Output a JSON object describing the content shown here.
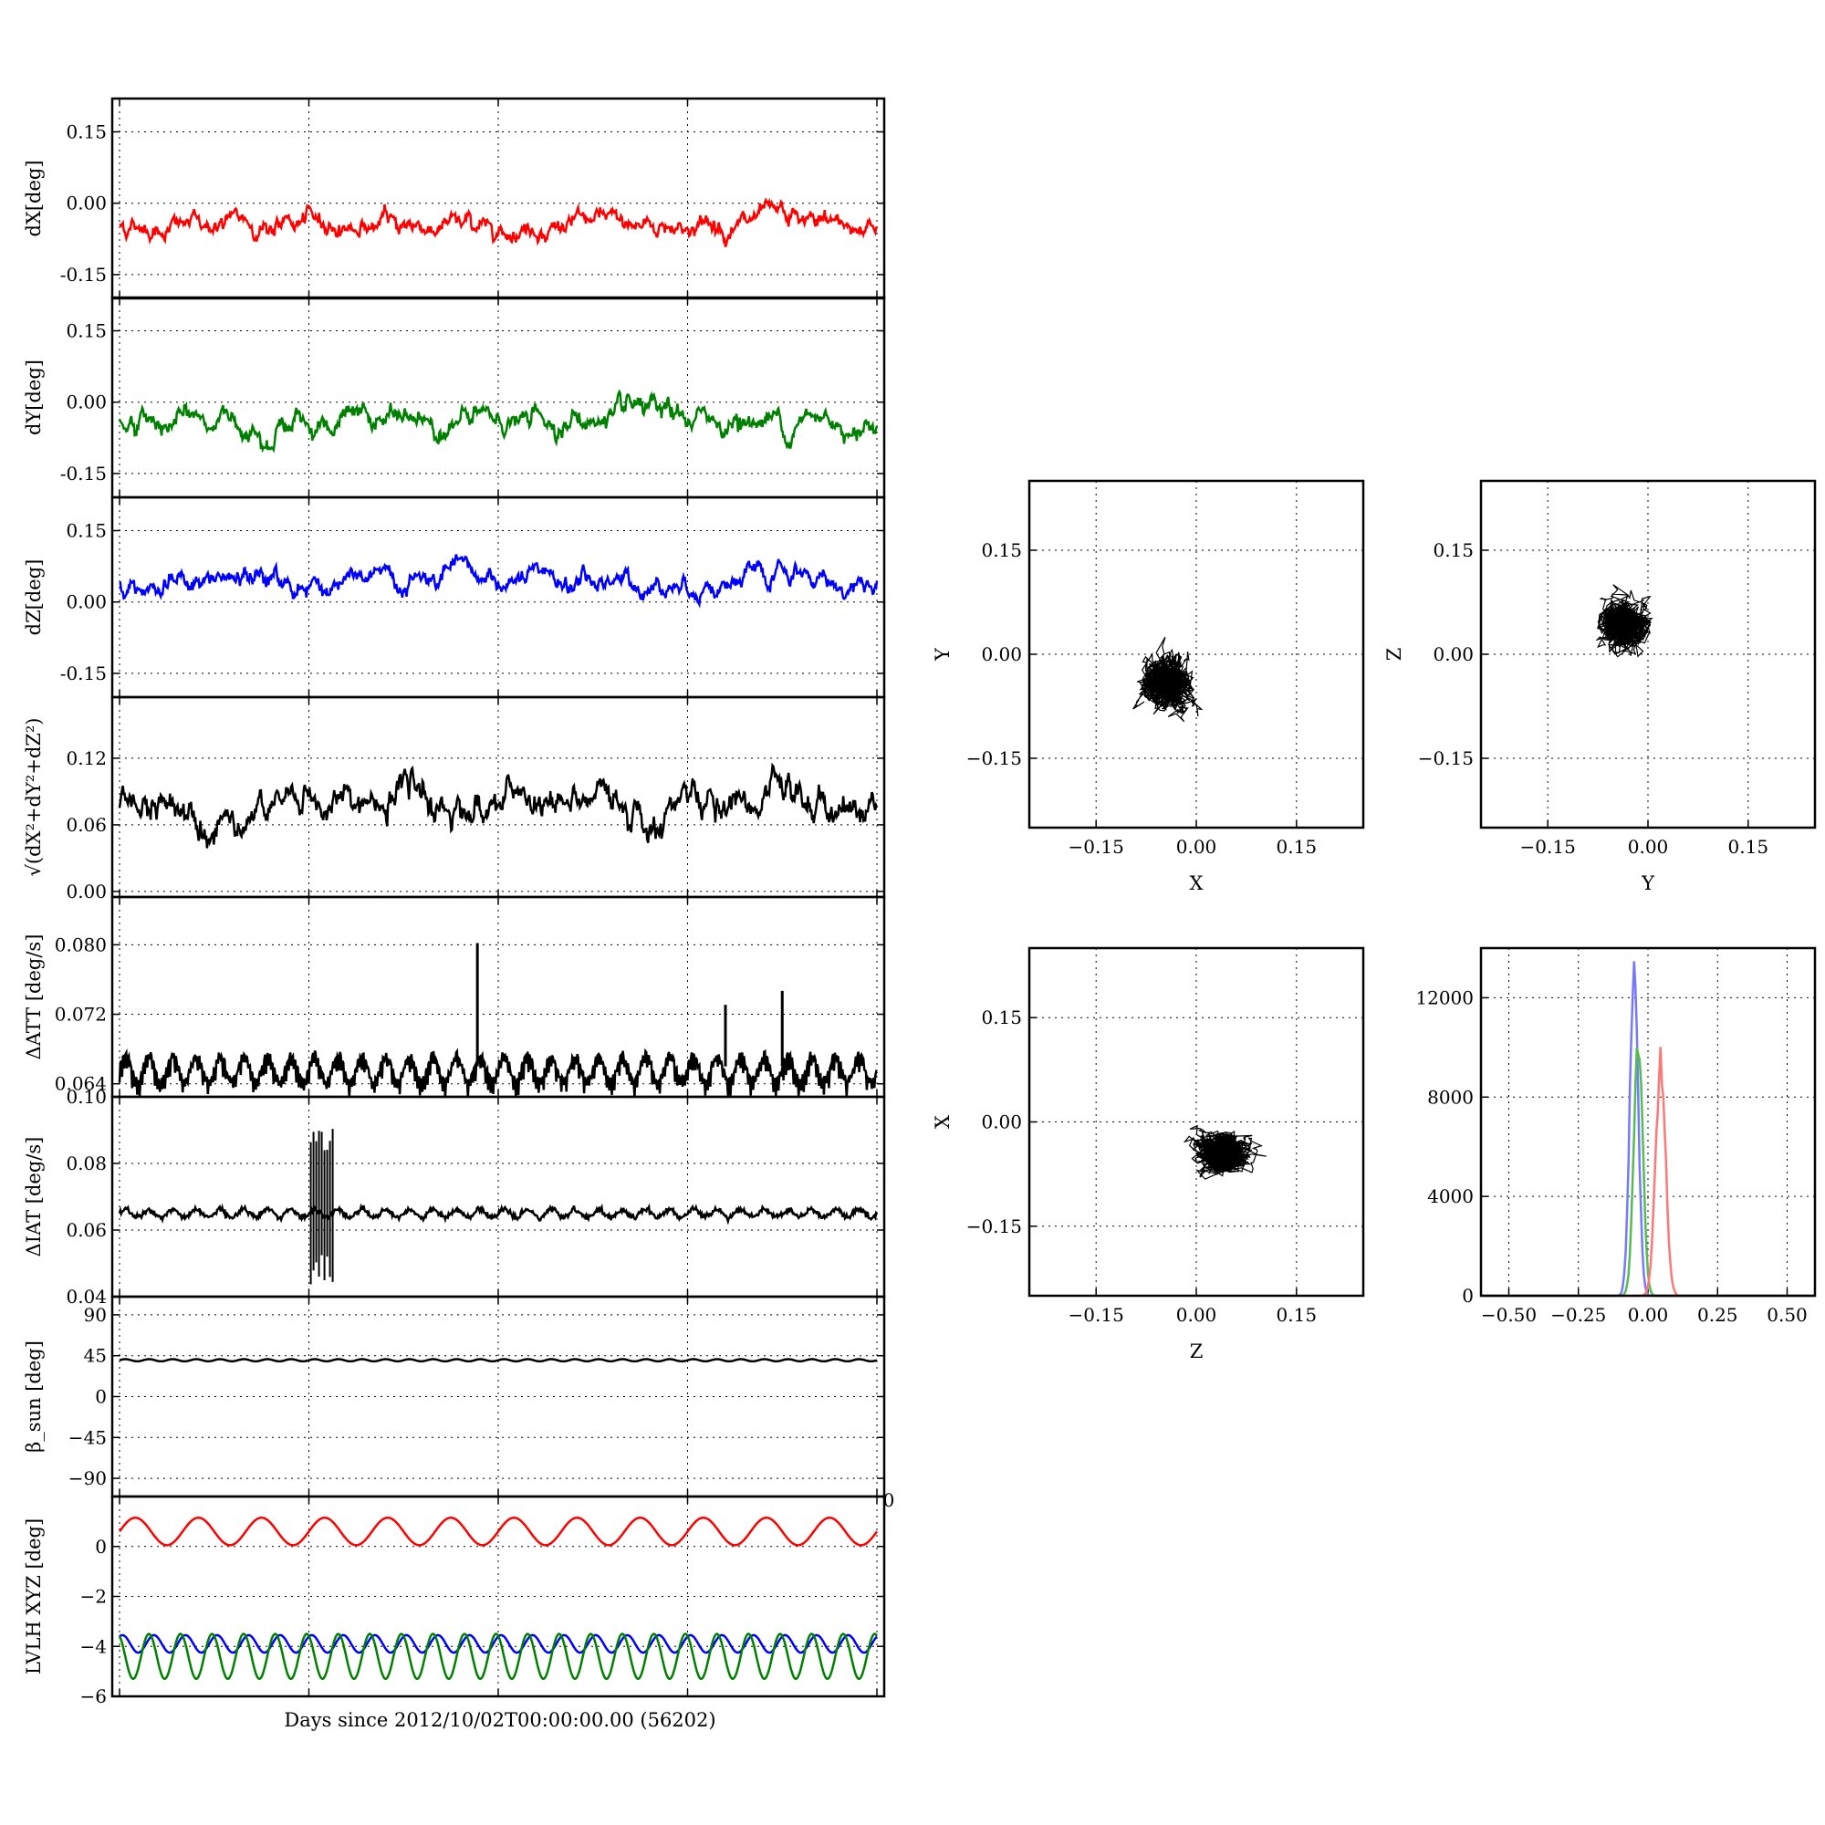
{
  "figure": {
    "xlabel": "Days since 2012/10/02T00:00:00.00 (56202)",
    "stray_tick": "0"
  },
  "chart_data": [
    {
      "id": "dX",
      "type": "line",
      "ylabel": "dX[deg]",
      "ylim": [
        -0.2,
        0.22
      ],
      "yticks": [
        "0.15",
        "0.00",
        "-0.15"
      ],
      "ytick_values": [
        0.15,
        0.0,
        -0.15
      ],
      "x": [
        0,
        4
      ],
      "grid": true,
      "series": [
        {
          "color": "#ff0000",
          "mean": -0.045,
          "noise": 0.012,
          "values_range": [
            -0.09,
            0.0
          ]
        }
      ]
    },
    {
      "id": "dY",
      "type": "line",
      "ylabel": "dY[deg]",
      "ylim": [
        -0.2,
        0.22
      ],
      "yticks": [
        "0.15",
        "0.00",
        "-0.15"
      ],
      "ytick_values": [
        0.15,
        0.0,
        -0.15
      ],
      "x": [
        0,
        4
      ],
      "grid": true,
      "series": [
        {
          "color": "#008000",
          "mean": -0.04,
          "noise": 0.014,
          "values_range": [
            -0.08,
            0.04
          ]
        }
      ]
    },
    {
      "id": "dZ",
      "type": "line",
      "ylabel": "dZ[deg]",
      "ylim": [
        -0.2,
        0.22
      ],
      "yticks": [
        "0.15",
        "0.00",
        "-0.15"
      ],
      "ytick_values": [
        0.15,
        0.0,
        -0.15
      ],
      "x": [
        0,
        4
      ],
      "grid": true,
      "series": [
        {
          "color": "#0000ff",
          "mean": 0.04,
          "noise": 0.013,
          "values_range": [
            -0.03,
            0.1
          ]
        }
      ]
    },
    {
      "id": "dR",
      "type": "line",
      "ylabel": "√(dX²+dY²+dZ²)",
      "ylim": [
        -0.005,
        0.175
      ],
      "yticks": [
        "0.12",
        "0.06",
        "0.00"
      ],
      "ytick_values": [
        0.12,
        0.06,
        0.0
      ],
      "x": [
        0,
        4
      ],
      "grid": true,
      "series": [
        {
          "color": "#000000",
          "mean": 0.078,
          "noise": 0.009,
          "values_range": [
            0.05,
            0.13
          ]
        }
      ]
    },
    {
      "id": "dATT",
      "type": "line",
      "ylabel": "ΔATT [deg/s]",
      "ylim": [
        0.0625,
        0.0855
      ],
      "yticks": [
        "0.080",
        "0.072",
        "0.064"
      ],
      "ytick_values": [
        0.08,
        0.072,
        0.064
      ],
      "x": [
        0,
        4
      ],
      "grid": true,
      "spikes": [
        {
          "x": 1.89,
          "y": 0.0802
        },
        {
          "x": 3.2,
          "y": 0.0731
        },
        {
          "x": 3.5,
          "y": 0.0747
        }
      ],
      "series": [
        {
          "color": "#000000",
          "mean": 0.0655,
          "noise": 0.0015,
          "values_range": [
            0.0625,
            0.068
          ]
        }
      ]
    },
    {
      "id": "dIAT",
      "type": "line",
      "ylabel": "ΔIAT [deg/s]",
      "ylim": [
        0.04,
        0.1
      ],
      "yticks": [
        "0.10",
        "0.08",
        "0.06",
        "0.04"
      ],
      "ytick_values": [
        0.1,
        0.08,
        0.06,
        0.04
      ],
      "x": [
        0,
        4
      ],
      "grid": true,
      "burst": {
        "x_range": [
          1.01,
          1.13
        ],
        "y_range": [
          0.043,
          0.092
        ]
      },
      "series": [
        {
          "color": "#000000",
          "mean": 0.065,
          "noise": 0.0012,
          "values_range": [
            0.062,
            0.068
          ]
        }
      ]
    },
    {
      "id": "beta",
      "type": "line",
      "ylabel": "β_sun [deg]",
      "ylim": [
        -110,
        110
      ],
      "yticks": [
        "90",
        "45",
        "0",
        "−45",
        "−90"
      ],
      "ytick_values": [
        90,
        45,
        0,
        -45,
        -90
      ],
      "x": [
        0,
        4
      ],
      "grid": true,
      "series": [
        {
          "color": "#000000",
          "mean": 40,
          "noise": 1.5,
          "values_range": [
            37,
            43
          ]
        }
      ]
    },
    {
      "id": "lvlh",
      "type": "line",
      "ylabel": "LVLH XYZ [deg]",
      "ylim": [
        -6,
        2
      ],
      "yticks": [
        "0",
        "−2",
        "−4",
        "−6"
      ],
      "ytick_values": [
        0,
        -2,
        -4,
        -6
      ],
      "tick_top_label": "0",
      "x": [
        0,
        4
      ],
      "grid": true,
      "series": [
        {
          "color": "#ff0000",
          "center": 0.6,
          "amplitude": 0.55,
          "cycles": 12
        },
        {
          "color": "#0000ff",
          "center": -3.9,
          "amplitude": 0.35,
          "cycles": 24
        },
        {
          "color": "#008000",
          "center": -4.4,
          "amplitude": 0.9,
          "cycles": 24
        }
      ]
    },
    {
      "id": "xy_scatter",
      "type": "scatter",
      "xlabel": "X",
      "ylabel": "Y",
      "xlim": [
        -0.25,
        0.25
      ],
      "ylim": [
        -0.25,
        0.25
      ],
      "xticks": [
        "−0.15",
        "0.00",
        "0.15"
      ],
      "yticks": [
        "0.15",
        "0.00",
        "−0.15"
      ],
      "tick_values": [
        -0.15,
        0.0,
        0.15
      ],
      "grid": true,
      "center": [
        -0.045,
        -0.04
      ],
      "spread": [
        0.02,
        0.022
      ]
    },
    {
      "id": "yz_scatter",
      "type": "scatter",
      "xlabel": "Y",
      "ylabel": "Z",
      "xlim": [
        -0.25,
        0.25
      ],
      "ylim": [
        -0.25,
        0.25
      ],
      "xticks": [
        "−0.15",
        "0.00",
        "0.15"
      ],
      "yticks": [
        "0.15",
        "0.00",
        "−0.15"
      ],
      "tick_values": [
        -0.15,
        0.0,
        0.15
      ],
      "grid": true,
      "center": [
        -0.035,
        0.04
      ],
      "spread": [
        0.02,
        0.02
      ]
    },
    {
      "id": "zx_scatter",
      "type": "scatter",
      "xlabel": "Z",
      "ylabel": "X",
      "xlim": [
        -0.25,
        0.25
      ],
      "ylim": [
        -0.25,
        0.25
      ],
      "xticks": [
        "−0.15",
        "0.00",
        "0.15"
      ],
      "yticks": [
        "0.15",
        "0.00",
        "−0.15"
      ],
      "tick_values": [
        -0.15,
        0.0,
        0.15
      ],
      "grid": true,
      "center": [
        0.04,
        -0.045
      ],
      "spread": [
        0.022,
        0.015
      ]
    },
    {
      "id": "histogram",
      "type": "line",
      "xlabel": "",
      "ylabel": "",
      "xlim": [
        -0.6,
        0.6
      ],
      "ylim": [
        0,
        14000
      ],
      "xticks": [
        "−0.50",
        "−0.25",
        "0.00",
        "0.25",
        "0.50"
      ],
      "xtick_values": [
        -0.5,
        -0.25,
        0.0,
        0.25,
        0.5
      ],
      "yticks": [
        "12000",
        "8000",
        "4000",
        "0"
      ],
      "ytick_values": [
        12000,
        8000,
        4000,
        0
      ],
      "grid": true,
      "series": [
        {
          "color": "#7777ff",
          "peak_x": -0.05,
          "peak": 13300,
          "width": 0.015
        },
        {
          "color": "#55bb55",
          "peak_x": -0.035,
          "peak": 10200,
          "width": 0.016
        },
        {
          "color": "#ff7777",
          "peak_x": 0.045,
          "peak": 9200,
          "width": 0.018
        }
      ]
    }
  ]
}
